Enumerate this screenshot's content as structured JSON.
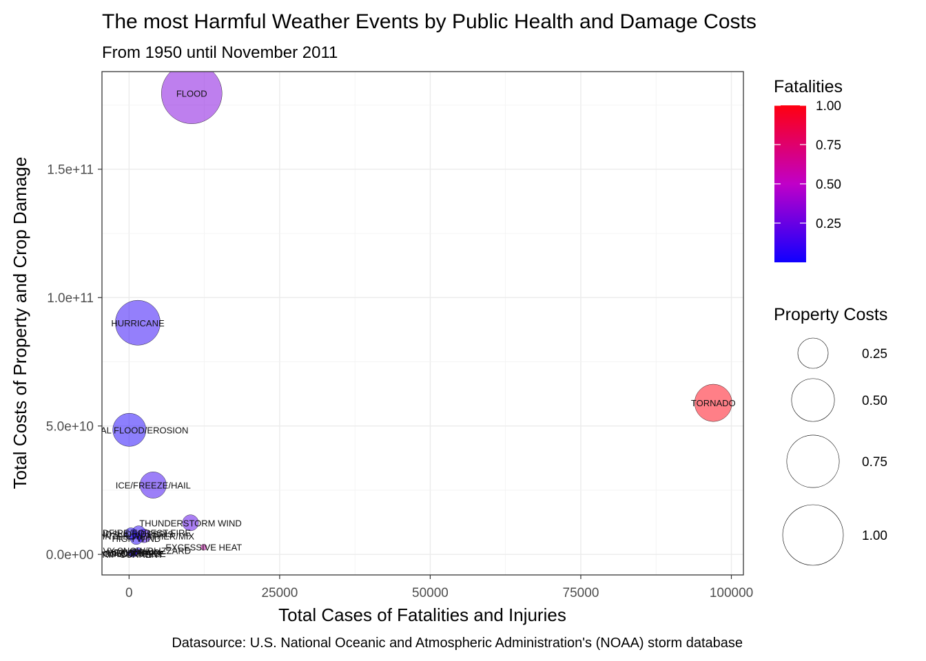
{
  "title": "The most Harmful Weather Events by Public Health and Damage Costs",
  "subtitle": "From 1950 until November 2011",
  "caption": "Datasource: U.S. National Oceanic and Atmospheric Administration's (NOAA) storm database",
  "chart_data": {
    "type": "scatter",
    "xlabel": "Total Cases of Fatalities and Injuries",
    "ylabel": "Total Costs of Property and Crop Damage",
    "xlim": [
      -4500,
      102000
    ],
    "ylim": [
      -8000000000,
      188000000000
    ],
    "x_ticks": [
      0,
      25000,
      50000,
      75000,
      100000
    ],
    "x_tick_labels": [
      "0",
      "25000",
      "50000",
      "75000",
      "100000"
    ],
    "y_ticks": [
      0,
      50000000000,
      100000000000,
      150000000000
    ],
    "y_tick_labels": [
      "0.0e+00",
      "5.0e+10",
      "1.0e+11",
      "1.5e+11"
    ],
    "grid": true,
    "color_legend": {
      "title": "Fatalities",
      "ticks": [
        0.25,
        0.5,
        0.75,
        1.0
      ],
      "tick_labels": [
        "0.25",
        "0.50",
        "0.75",
        "1.00"
      ],
      "low_color": "#1000ff",
      "mid_color": "#c000c8",
      "high_color": "#ff0010"
    },
    "size_legend": {
      "title": "Property Costs",
      "values": [
        0.25,
        0.5,
        0.75,
        1.0
      ],
      "labels": [
        "0.25",
        "0.50",
        "0.75",
        "1.00"
      ]
    },
    "points": [
      {
        "label": "FLOOD",
        "x": 10400,
        "y": 179500000000,
        "fatalities": 0.31,
        "property": 1.0
      },
      {
        "label": "HURRICANE",
        "x": 1450,
        "y": 90200000000,
        "fatalities": 0.07,
        "property": 0.55
      },
      {
        "label": "TORNADO",
        "x": 97000,
        "y": 59000000000,
        "fatalities": 1.0,
        "property": 0.38
      },
      {
        "label": "COASTAL FLOOD/EROSION",
        "x": 50,
        "y": 48500000000,
        "fatalities": 0.03,
        "property": 0.3
      },
      {
        "label": "ICE/FREEZE/HAIL",
        "x": 4000,
        "y": 27000000000,
        "fatalities": 0.12,
        "property": 0.19
      },
      {
        "label": "THUNDERSTORM WIND",
        "x": 10200,
        "y": 12300000000,
        "fatalities": 0.2,
        "property": 0.07
      },
      {
        "label": "WINTER WEATHER/MIX",
        "x": 2500,
        "y": 7200000000,
        "fatalities": 0.15,
        "property": 0.05
      },
      {
        "label": "WILDFIRE/FOREST FIRE",
        "x": 1600,
        "y": 8500000000,
        "fatalities": 0.06,
        "property": 0.05
      },
      {
        "label": "HIGH WIND",
        "x": 1200,
        "y": 6200000000,
        "fatalities": 0.05,
        "property": 0.04
      },
      {
        "label": "LANDSLIDE/DEBRIS",
        "x": 300,
        "y": 8000000000,
        "fatalities": 0.02,
        "property": 0.04
      },
      {
        "label": "EXCESSIVE HEAT",
        "x": 12400,
        "y": 2800000000,
        "fatalities": 0.58,
        "property": 0.01
      },
      {
        "label": "HEAVY SNOW/BLIZZARD",
        "x": 1500,
        "y": 1500000000,
        "fatalities": 0.05,
        "property": 0.01
      },
      {
        "label": "HEAVY RAIN",
        "x": 800,
        "y": 900000000,
        "fatalities": 0.04,
        "property": 0.01
      },
      {
        "label": "LIGHTNING",
        "x": 1100,
        "y": 800000000,
        "fatalities": 0.08,
        "property": 0.01
      },
      {
        "label": "DROUGHT",
        "x": 200,
        "y": 500000000,
        "fatalities": 0.01,
        "property": 0.01
      },
      {
        "label": "COLD/FREEZE",
        "x": 900,
        "y": 300000000,
        "fatalities": 0.06,
        "property": 0.01
      },
      {
        "label": "RIP CURRENT",
        "x": 600,
        "y": 100000000,
        "fatalities": 0.05,
        "property": 0.01
      }
    ]
  }
}
